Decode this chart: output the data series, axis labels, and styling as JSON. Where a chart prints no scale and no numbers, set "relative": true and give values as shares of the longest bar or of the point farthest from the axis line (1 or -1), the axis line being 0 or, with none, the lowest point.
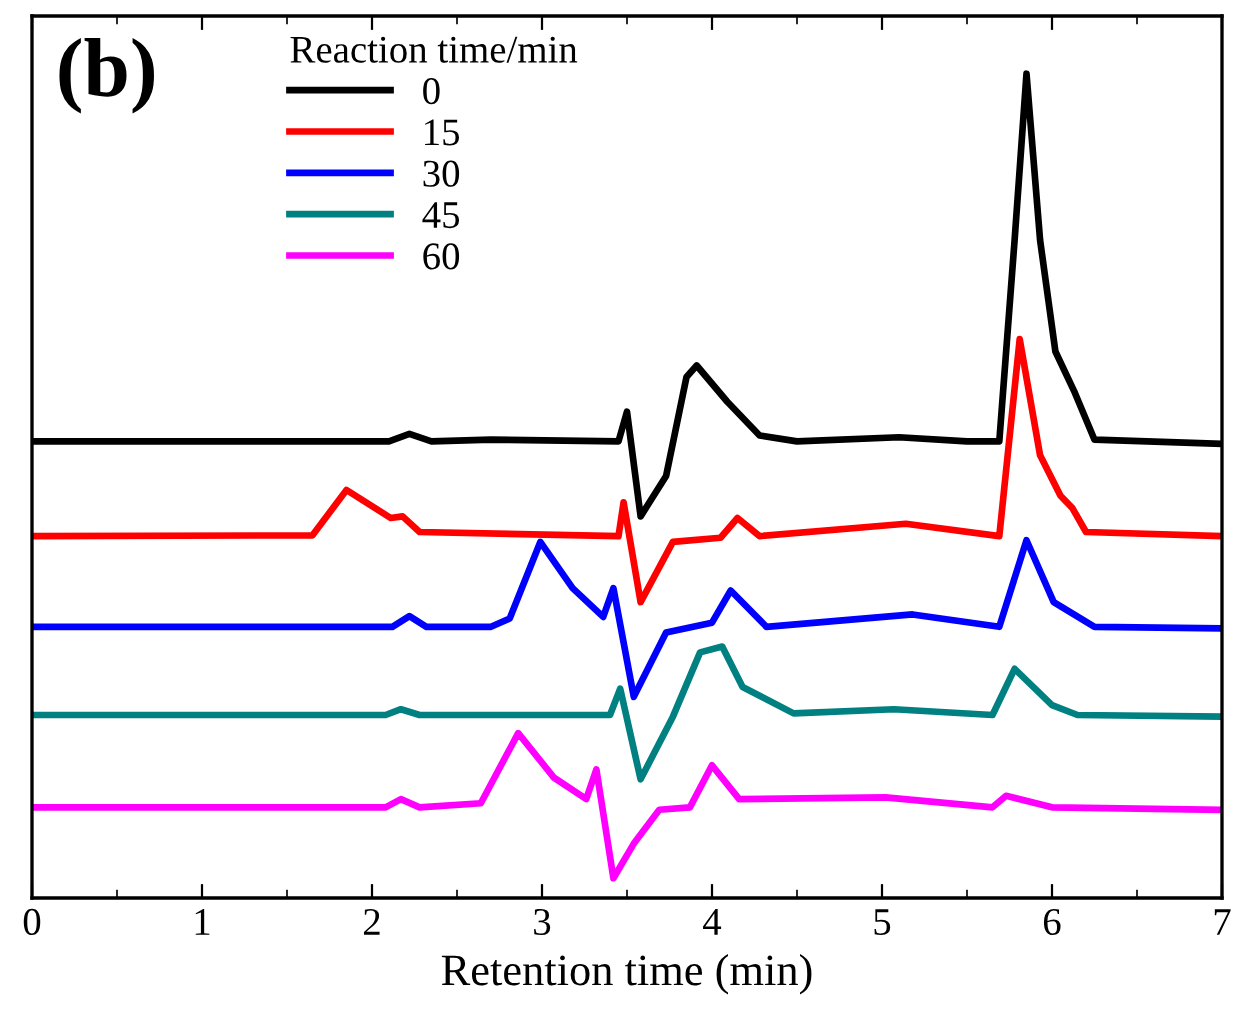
{
  "chart_data": {
    "type": "line",
    "relative": true,
    "xlabel": "Retention time (min)",
    "xlim": [
      0,
      7
    ],
    "xticks": [
      0,
      1,
      2,
      3,
      4,
      5,
      6,
      7
    ],
    "tick_labels": "x",
    "legend": "top left",
    "legend_title": "Reaction time/min",
    "line_style": "solid",
    "marker": "none",
    "grid": false,
    "annotations": [
      "(b)"
    ],
    "series": [
      {
        "name": "0",
        "color": "#000000",
        "x": [
          0,
          2.1,
          2.22,
          2.35,
          2.7,
          3.45,
          3.5,
          3.58,
          3.73,
          3.85,
          3.91,
          4.09,
          4.28,
          4.5,
          5.1,
          5.5,
          5.69,
          5.78,
          5.85,
          5.93,
          6.02,
          6.13,
          6.25,
          7
        ],
        "values": [
          0.554,
          0.554,
          0.563,
          0.554,
          0.556,
          0.554,
          0.59,
          0.463,
          0.512,
          0.632,
          0.646,
          0.602,
          0.561,
          0.554,
          0.559,
          0.554,
          0.554,
          0.798,
          1,
          0.798,
          0.663,
          0.615,
          0.556,
          0.551
        ]
      },
      {
        "name": "15",
        "color": "#ff0000",
        "x": [
          0,
          1.65,
          1.85,
          2.11,
          2.18,
          2.28,
          3.45,
          3.48,
          3.58,
          3.77,
          4.05,
          4.15,
          4.28,
          5.14,
          5.69,
          5.81,
          5.93,
          6.05,
          6.12,
          6.2,
          7
        ],
        "values": [
          0.439,
          0.44,
          0.495,
          0.461,
          0.463,
          0.444,
          0.439,
          0.48,
          0.359,
          0.432,
          0.437,
          0.461,
          0.439,
          0.454,
          0.439,
          0.678,
          0.537,
          0.488,
          0.473,
          0.444,
          0.439
        ]
      },
      {
        "name": "30",
        "color": "#0000ff",
        "x": [
          0,
          2.12,
          2.22,
          2.32,
          2.7,
          2.81,
          2.99,
          3.18,
          3.36,
          3.42,
          3.54,
          3.73,
          4.0,
          4.11,
          4.32,
          5.18,
          5.69,
          5.85,
          6.01,
          6.25,
          7
        ],
        "values": [
          0.329,
          0.329,
          0.342,
          0.329,
          0.329,
          0.339,
          0.432,
          0.376,
          0.341,
          0.376,
          0.244,
          0.322,
          0.334,
          0.373,
          0.329,
          0.344,
          0.329,
          0.434,
          0.359,
          0.329,
          0.327
        ]
      },
      {
        "name": "45",
        "color": "#008080",
        "x": [
          0,
          2.08,
          2.17,
          2.28,
          3.4,
          3.46,
          3.58,
          3.77,
          3.93,
          4.06,
          4.18,
          4.48,
          5.07,
          5.65,
          5.78,
          6.0,
          6.15,
          7
        ],
        "values": [
          0.222,
          0.222,
          0.229,
          0.222,
          0.222,
          0.254,
          0.144,
          0.22,
          0.298,
          0.305,
          0.256,
          0.224,
          0.229,
          0.222,
          0.278,
          0.234,
          0.222,
          0.22
        ]
      },
      {
        "name": "60",
        "color": "#ff00ff",
        "x": [
          0,
          2.08,
          2.17,
          2.28,
          2.64,
          2.86,
          3.07,
          3.26,
          3.32,
          3.42,
          3.54,
          3.69,
          3.87,
          4.0,
          4.16,
          5.02,
          5.65,
          5.73,
          6.0,
          7
        ],
        "values": [
          0.11,
          0.11,
          0.12,
          0.11,
          0.115,
          0.2,
          0.146,
          0.12,
          0.156,
          0.024,
          0.066,
          0.107,
          0.11,
          0.161,
          0.12,
          0.122,
          0.11,
          0.124,
          0.11,
          0.107
        ]
      }
    ]
  }
}
